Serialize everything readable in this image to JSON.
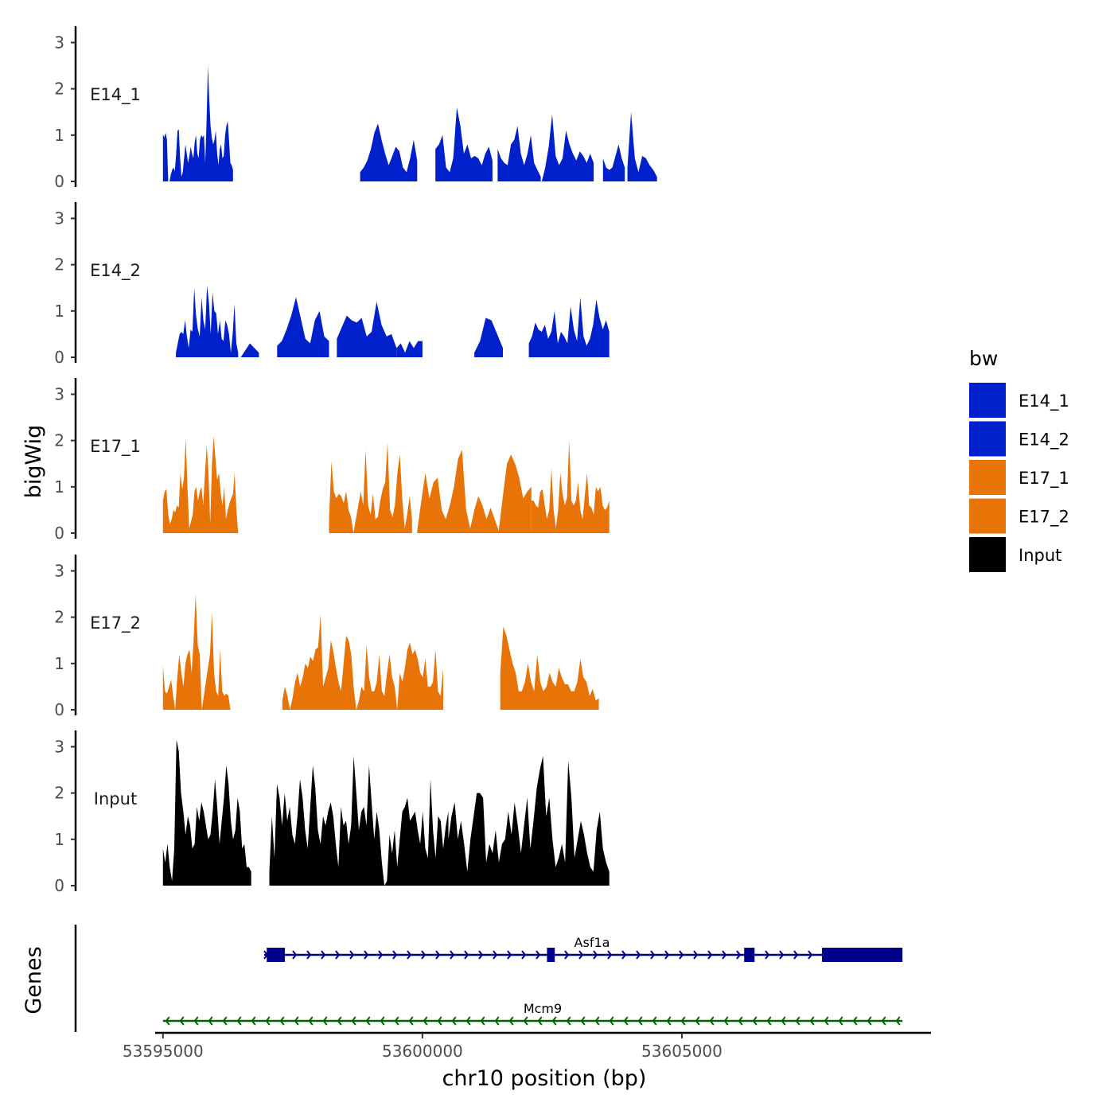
{
  "chart_data": {
    "type": "area",
    "layout": "stacked genome tracks",
    "xlabel": "chr10 position (bp)",
    "ylabel": "bigWig",
    "xlim": [
      53594850,
      53609800
    ],
    "x_ticks": [
      53595000,
      53600000,
      53605000
    ],
    "x_tick_labels": [
      "53595000",
      "53600000",
      "53605000"
    ],
    "y_ticks": [
      0,
      1,
      2,
      3
    ],
    "y_tick_labels": [
      "0",
      "1",
      "2",
      "3"
    ],
    "ylim": [
      0,
      3.3
    ],
    "legend": {
      "title": "bw",
      "position": "right",
      "entries": [
        {
          "label": "E14_1",
          "color": "#0020CC"
        },
        {
          "label": "E14_2",
          "color": "#0020CC"
        },
        {
          "label": "E17_1",
          "color": "#E87306"
        },
        {
          "label": "E17_2",
          "color": "#E87306"
        },
        {
          "label": "Input",
          "color": "#000000"
        }
      ]
    },
    "tracks": [
      {
        "name": "E14_1",
        "color": "#0020CC",
        "segments": [
          {
            "start": 53595000,
            "end": 53596350,
            "values": [
              1.02,
              0.95,
              1.05,
              0.9,
              0.0,
              0.0,
              0.15,
              0.25,
              0.3,
              0.22,
              0.6,
              1.1,
              1.12,
              0.5,
              0.1,
              0.2,
              0.5,
              0.8,
              0.6,
              0.4,
              0.55,
              0.75,
              0.6,
              0.5,
              0.85,
              1.0,
              0.6,
              0.5,
              0.9,
              1.0,
              0.95,
              1.0,
              0.4,
              1.3,
              2.5,
              1.8,
              1.2,
              0.95,
              0.8,
              0.9,
              1.1,
              0.6,
              0.35,
              0.7,
              0.8,
              0.5,
              0.55,
              1.0,
              1.2,
              1.3,
              0.9,
              0.4,
              0.35,
              0.25
            ]
          },
          {
            "start": 53598800,
            "end": 53599900,
            "values": [
              0.2,
              0.3,
              0.45,
              0.7,
              1.05,
              1.25,
              0.9,
              0.6,
              0.35,
              0.55,
              0.75,
              0.65,
              0.3,
              0.2,
              0.5,
              0.9,
              0.45
            ]
          },
          {
            "start": 53600250,
            "end": 53601350,
            "values": [
              0.7,
              0.8,
              1.0,
              0.3,
              0.2,
              0.5,
              1.6,
              1.2,
              0.6,
              0.8,
              0.5,
              0.55,
              0.5,
              0.35,
              0.6,
              0.75,
              0.45
            ]
          },
          {
            "start": 53601450,
            "end": 53602280,
            "values": [
              0.7,
              0.5,
              0.4,
              0.35,
              0.8,
              0.9,
              1.2,
              0.6,
              0.35,
              0.6,
              1.0,
              0.4,
              0.25,
              0.1
            ]
          },
          {
            "start": 53602300,
            "end": 53603300,
            "values": [
              0.0,
              0.3,
              0.75,
              1.45,
              0.55,
              0.35,
              0.5,
              1.1,
              0.8,
              0.6,
              0.45,
              0.65,
              0.55,
              0.4,
              0.6,
              0.4
            ]
          },
          {
            "start": 53603480,
            "end": 53603900,
            "values": [
              0.5,
              0.3,
              0.25,
              0.3,
              0.55,
              0.8,
              0.5,
              0.3
            ]
          },
          {
            "start": 53603950,
            "end": 53604520,
            "values": [
              0.3,
              1.5,
              0.5,
              0.2,
              0.55,
              0.5,
              0.35,
              0.25,
              0.1
            ]
          }
        ]
      },
      {
        "name": "E14_2",
        "color": "#0020CC",
        "segments": [
          {
            "start": 53595250,
            "end": 53596450,
            "values": [
              0.1,
              0.3,
              0.5,
              0.55,
              0.5,
              0.8,
              0.45,
              0.2,
              0.6,
              0.55,
              1.5,
              0.9,
              0.6,
              0.45,
              1.3,
              0.8,
              0.6,
              1.55,
              1.2,
              0.5,
              1.4,
              1.0,
              0.95,
              0.5,
              0.8,
              0.4,
              0.35,
              0.8,
              0.7,
              0.5,
              0.1,
              0.5,
              1.15,
              0.3,
              0.1
            ]
          },
          {
            "start": 53596500,
            "end": 53596850,
            "values": [
              0.0,
              0.3,
              0.1
            ]
          },
          {
            "start": 53597200,
            "end": 53598200,
            "values": [
              0.25,
              0.35,
              0.6,
              0.9,
              1.3,
              0.85,
              0.4,
              0.3,
              0.8,
              1.0,
              0.45,
              0.35
            ]
          },
          {
            "start": 53598350,
            "end": 53599500,
            "values": [
              0.4,
              0.65,
              0.9,
              0.8,
              0.75,
              0.85,
              0.45,
              0.55,
              1.2,
              0.7,
              0.45,
              0.5,
              0.2
            ]
          },
          {
            "start": 53599500,
            "end": 53600000,
            "values": [
              0.2,
              0.3,
              0.1,
              0.35,
              0.2,
              0.35,
              0.35
            ]
          },
          {
            "start": 53601000,
            "end": 53601550,
            "values": [
              0.1,
              0.35,
              0.85,
              0.8,
              0.5,
              0.2
            ]
          },
          {
            "start": 53602050,
            "end": 53603600,
            "values": [
              0.3,
              0.45,
              0.75,
              0.6,
              0.55,
              0.7,
              0.4,
              0.55,
              1.0,
              0.3,
              0.55,
              0.45,
              0.3,
              1.1,
              0.6,
              0.35,
              1.3,
              0.45,
              0.25,
              0.4,
              0.7,
              1.25,
              0.85,
              0.6,
              0.8,
              0.55
            ]
          }
        ]
      },
      {
        "name": "E17_1",
        "color": "#E87306",
        "segments": [
          {
            "start": 53595000,
            "end": 53596450,
            "values": [
              0.7,
              0.9,
              0.95,
              0.4,
              0.2,
              0.3,
              0.5,
              0.45,
              0.6,
              0.55,
              1.3,
              0.95,
              1.2,
              2.05,
              1.0,
              0.1,
              0.25,
              0.4,
              0.9,
              1.0,
              0.7,
              0.9,
              1.0,
              0.6,
              1.3,
              1.9,
              1.3,
              0.2,
              1.5,
              2.1,
              1.6,
              1.15,
              1.3,
              0.85,
              0.6,
              1.0,
              0.3,
              0.5,
              0.65,
              0.75,
              0.85,
              1.3,
              0.5,
              0.0
            ]
          },
          {
            "start": 53598200,
            "end": 53599800,
            "values": [
              0.3,
              1.55,
              0.9,
              0.75,
              0.85,
              0.8,
              0.65,
              0.9,
              0.5,
              0.35,
              0.0,
              0.3,
              0.6,
              0.9,
              0.6,
              1.8,
              0.6,
              0.4,
              0.85,
              0.3,
              0.35,
              0.7,
              0.95,
              1.1,
              1.95,
              0.5,
              0.35,
              0.6,
              1.3,
              1.7,
              0.75,
              0.1,
              0.4,
              0.8,
              0.3
            ]
          },
          {
            "start": 53599900,
            "end": 53602100,
            "values": [
              0.05,
              0.7,
              1.3,
              0.75,
              1.1,
              1.2,
              0.5,
              0.3,
              0.6,
              1.0,
              1.6,
              1.8,
              0.5,
              0.1,
              0.5,
              0.8,
              0.6,
              0.3,
              0.55,
              0.3,
              0.05,
              0.8,
              1.5,
              1.7,
              1.5,
              1.2,
              0.75,
              0.9,
              1.0
            ]
          },
          {
            "start": 53602100,
            "end": 53603600,
            "values": [
              0.7,
              0.7,
              0.6,
              0.55,
              0.9,
              0.95,
              0.6,
              0.3,
              0.5,
              1.4,
              0.5,
              0.1,
              0.5,
              1.3,
              0.85,
              0.6,
              0.75,
              2.0,
              0.7,
              0.6,
              0.7,
              1.1,
              0.5,
              0.3,
              0.8,
              1.3,
              0.6,
              0.55,
              0.4,
              1.0,
              0.9,
              1.0,
              0.6,
              0.5,
              0.55,
              0.7
            ]
          }
        ]
      },
      {
        "name": "E17_2",
        "color": "#E87306",
        "segments": [
          {
            "start": 53595000,
            "end": 53596300,
            "values": [
              0.95,
              0.4,
              0.35,
              0.5,
              0.65,
              0.3,
              0.0,
              0.7,
              1.2,
              0.8,
              0.5,
              1.0,
              1.2,
              1.3,
              0.8,
              1.5,
              2.5,
              1.4,
              1.2,
              0.0,
              0.3,
              0.6,
              0.9,
              1.2,
              2.1,
              0.8,
              0.4,
              0.3,
              1.3,
              0.4,
              0.3,
              0.35,
              0.3,
              0.0
            ]
          },
          {
            "start": 53597300,
            "end": 53600400,
            "values": [
              0.2,
              0.5,
              0.3,
              0.0,
              0.25,
              0.6,
              0.8,
              0.5,
              0.7,
              1.0,
              0.9,
              1.15,
              1.05,
              1.3,
              1.35,
              2.05,
              0.5,
              0.7,
              0.9,
              1.5,
              1.25,
              0.9,
              0.6,
              0.4,
              1.0,
              1.6,
              1.5,
              1.2,
              0.45,
              0.0,
              0.2,
              0.5,
              0.4,
              1.4,
              0.7,
              0.4,
              0.4,
              0.6,
              1.2,
              0.4,
              0.3,
              0.8,
              1.2,
              0.7,
              0.5,
              0.0,
              0.8,
              0.6,
              0.9,
              1.3,
              1.45,
              1.2,
              1.3,
              1.1,
              0.8,
              0.7,
              1.1,
              0.5,
              0.5,
              0.6,
              1.3,
              0.4,
              0.3,
              0.9
            ]
          },
          {
            "start": 53601500,
            "end": 53603400,
            "values": [
              0.8,
              1.8,
              1.6,
              1.3,
              1.0,
              0.8,
              0.4,
              0.4,
              0.6,
              1.0,
              0.6,
              0.4,
              1.2,
              0.6,
              0.4,
              0.5,
              0.8,
              0.6,
              0.5,
              0.9,
              0.7,
              0.55,
              0.55,
              0.4,
              0.4,
              0.6,
              1.1,
              0.7,
              0.6,
              0.3,
              0.45,
              0.2,
              0.25
            ]
          }
        ]
      },
      {
        "name": "Input",
        "color": "#000000",
        "segments": [
          {
            "start": 53595000,
            "end": 53596700,
            "values": [
              0.8,
              0.5,
              0.9,
              0.4,
              0.1,
              0.8,
              3.15,
              2.9,
              2.0,
              1.6,
              1.1,
              1.5,
              1.3,
              0.8,
              0.9,
              1.7,
              1.4,
              1.8,
              1.6,
              1.3,
              1.0,
              1.1,
              1.6,
              2.3,
              1.7,
              0.9,
              1.4,
              1.9,
              2.6,
              2.2,
              1.4,
              1.0,
              1.2,
              1.9,
              1.6,
              0.8,
              0.9,
              0.4,
              0.4,
              0.3
            ]
          },
          {
            "start": 53597050,
            "end": 53600500,
            "values": [
              0.3,
              1.5,
              0.6,
              2.2,
              1.9,
              1.3,
              2.0,
              1.4,
              1.7,
              1.1,
              0.9,
              1.5,
              2.3,
              1.9,
              1.2,
              0.8,
              1.7,
              2.6,
              2.1,
              1.2,
              0.9,
              1.5,
              1.3,
              1.6,
              1.8,
              1.5,
              0.9,
              0.4,
              1.7,
              1.3,
              1.4,
              0.9,
              1.3,
              2.8,
              2.0,
              1.2,
              1.6,
              1.7,
              1.3,
              2.6,
              1.8,
              1.0,
              1.6,
              1.2,
              0.5,
              0.0,
              0.1,
              1.1,
              0.7,
              1.2,
              0.4,
              1.0,
              1.6,
              1.7,
              1.9,
              1.4,
              1.5,
              1.6,
              1.2,
              0.9,
              1.6,
              0.8,
              0.6,
              2.3,
              1.2,
              0.6,
              1.5,
              1.4,
              0.8,
              1.3,
              1.6
            ]
          },
          {
            "start": 53600500,
            "end": 53603600,
            "values": [
              1.0,
              1.5,
              1.8,
              1.0,
              1.4,
              0.9,
              0.3,
              1.0,
              1.5,
              2.0,
              2.0,
              1.9,
              0.5,
              0.9,
              0.7,
              1.2,
              0.5,
              0.9,
              1.0,
              1.6,
              1.1,
              1.8,
              1.3,
              0.7,
              1.3,
              1.9,
              0.8,
              1.4,
              2.1,
              2.5,
              2.8,
              1.5,
              1.9,
              1.0,
              0.4,
              0.6,
              0.9,
              0.5,
              2.7,
              1.9,
              0.6,
              1.0,
              1.4,
              1.1,
              0.7,
              0.4,
              0.3,
              1.2,
              1.6,
              0.8,
              0.5,
              0.3
            ]
          }
        ]
      }
    ],
    "genes_track": {
      "label": "Genes",
      "genes": [
        {
          "name": "Asf1a",
          "start": 53596950,
          "end": 53609250,
          "strand": "+",
          "color": "#00008B",
          "exons": [
            [
              53597000,
              53597350
            ],
            [
              53602400,
              53602550
            ],
            [
              53606200,
              53606400
            ],
            [
              53607700,
              53609250
            ]
          ]
        },
        {
          "name": "Mcm9",
          "start": 53595000,
          "end": 53609250,
          "strand": "-",
          "color": "#006400",
          "exons": []
        }
      ]
    }
  }
}
